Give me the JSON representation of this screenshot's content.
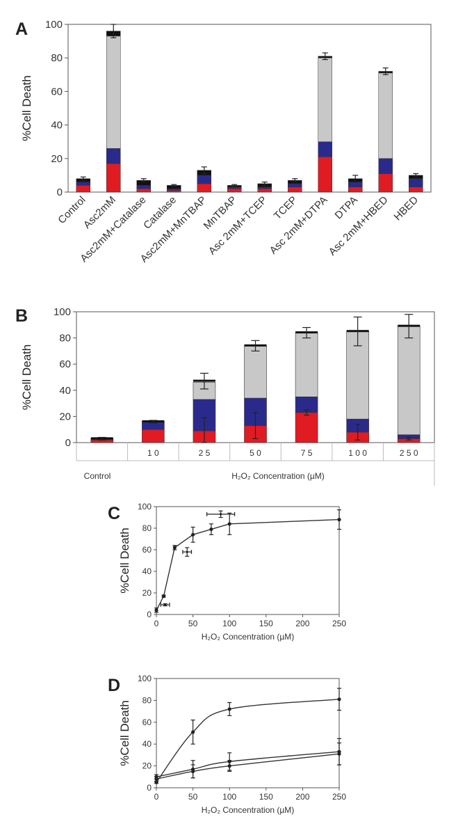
{
  "colors": {
    "red": "#e11b22",
    "blue": "#2a2a8c",
    "gray": "#c8c8c8",
    "black": "#111111",
    "axis": "#555555",
    "line": "#333333"
  },
  "chart_data": [
    {
      "panel": "A",
      "type": "bar",
      "stacked": true,
      "ylabel": "%Cell Death",
      "ylim": [
        0,
        100
      ],
      "yticks": [
        0,
        20,
        40,
        60,
        80,
        100
      ],
      "categories": [
        "Control",
        "Asc2mM",
        "Asc2mM+Catalase",
        "Catalase",
        "Asc2mM+MnTBAP",
        "MnTBAP",
        "Asc 2mM+TCEP",
        "TCEP",
        "Asc 2mM+DTPA",
        "DTPA",
        "Asc 2mM+HBED",
        "HBED"
      ],
      "series": [
        {
          "color": "red",
          "values": [
            4,
            17,
            2,
            1,
            5,
            2,
            2,
            3,
            21,
            3,
            11,
            3
          ]
        },
        {
          "color": "blue",
          "values": [
            2,
            9,
            2,
            1,
            5,
            1,
            1,
            2,
            9,
            3,
            9,
            5
          ]
        },
        {
          "color": "gray",
          "values": [
            0,
            67,
            0,
            0,
            0,
            0,
            0,
            0,
            50,
            0,
            51,
            0
          ]
        },
        {
          "color": "black",
          "values": [
            2,
            3,
            3,
            2,
            3,
            1,
            2,
            2,
            1,
            2,
            1,
            2
          ]
        }
      ],
      "totals": [
        8,
        96,
        7,
        4,
        13,
        4,
        5,
        7,
        81,
        8,
        72,
        10
      ],
      "errors": [
        1,
        4,
        1,
        0.5,
        2,
        0.5,
        1,
        1,
        2,
        2,
        2,
        1
      ]
    },
    {
      "panel": "B",
      "type": "bar",
      "stacked": true,
      "ylabel": "%Cell Death",
      "xlabel": "H₂O₂ Concentration (µM)",
      "ylim": [
        0,
        100
      ],
      "yticks": [
        0,
        20,
        40,
        60,
        80,
        100
      ],
      "categories": [
        "",
        "1 0",
        "2 5",
        "5 0",
        "7 5",
        "1 0 0",
        "2 5 0"
      ],
      "control_label": "Control",
      "series": [
        {
          "color": "red",
          "values": [
            2,
            10,
            9,
            13,
            23,
            8,
            3
          ]
        },
        {
          "color": "blue",
          "values": [
            1,
            6,
            24,
            21,
            12,
            10,
            3
          ]
        },
        {
          "color": "gray",
          "values": [
            0,
            0,
            13,
            40,
            49,
            67,
            83
          ]
        }
      ],
      "totals": [
        3,
        16,
        47,
        74,
        84,
        85,
        89
      ],
      "errors": [
        1,
        1,
        6,
        4,
        4,
        11,
        9
      ],
      "inner_errors": [
        0,
        0,
        10,
        10,
        2,
        6,
        1
      ]
    },
    {
      "panel": "C",
      "type": "scatter",
      "ylabel": "%Cell Death",
      "xlabel": "H₂O₂ Concentration (µM)",
      "xlim": [
        0,
        250
      ],
      "ylim": [
        0,
        100
      ],
      "xticks": [
        0,
        50,
        100,
        150,
        200,
        250
      ],
      "yticks": [
        0,
        20,
        40,
        60,
        80,
        100
      ],
      "series": [
        {
          "style": "line",
          "x": [
            0,
            10,
            25,
            50,
            75,
            100,
            250
          ],
          "y": [
            4,
            17,
            62,
            74,
            79,
            84,
            88
          ],
          "yerr": [
            2,
            1,
            2,
            7,
            5,
            10,
            9
          ]
        },
        {
          "style": "points",
          "x": [
            12,
            42,
            88
          ],
          "y": [
            9,
            58,
            93
          ],
          "xerr": [
            6,
            6,
            19
          ],
          "yerr": [
            1,
            4,
            3
          ]
        }
      ]
    },
    {
      "panel": "D",
      "type": "line",
      "ylabel": "%Cell Death",
      "xlabel": "H₂O₂ Concentration (µM)",
      "xlim": [
        0,
        250
      ],
      "ylim": [
        0,
        100
      ],
      "xticks": [
        0,
        50,
        100,
        150,
        200,
        250
      ],
      "yticks": [
        0,
        20,
        40,
        60,
        80,
        100
      ],
      "series": [
        {
          "x": [
            0,
            50,
            100,
            250
          ],
          "y": [
            5,
            51,
            72,
            81
          ],
          "yerr": [
            1,
            11,
            6,
            10
          ]
        },
        {
          "x": [
            0,
            50,
            100,
            250
          ],
          "y": [
            10,
            17,
            24,
            33
          ],
          "yerr": [
            2,
            8,
            8,
            12
          ]
        },
        {
          "x": [
            0,
            50,
            100,
            250
          ],
          "y": [
            8,
            15,
            20,
            31
          ],
          "yerr": [
            2,
            6,
            5,
            10
          ]
        }
      ]
    }
  ]
}
